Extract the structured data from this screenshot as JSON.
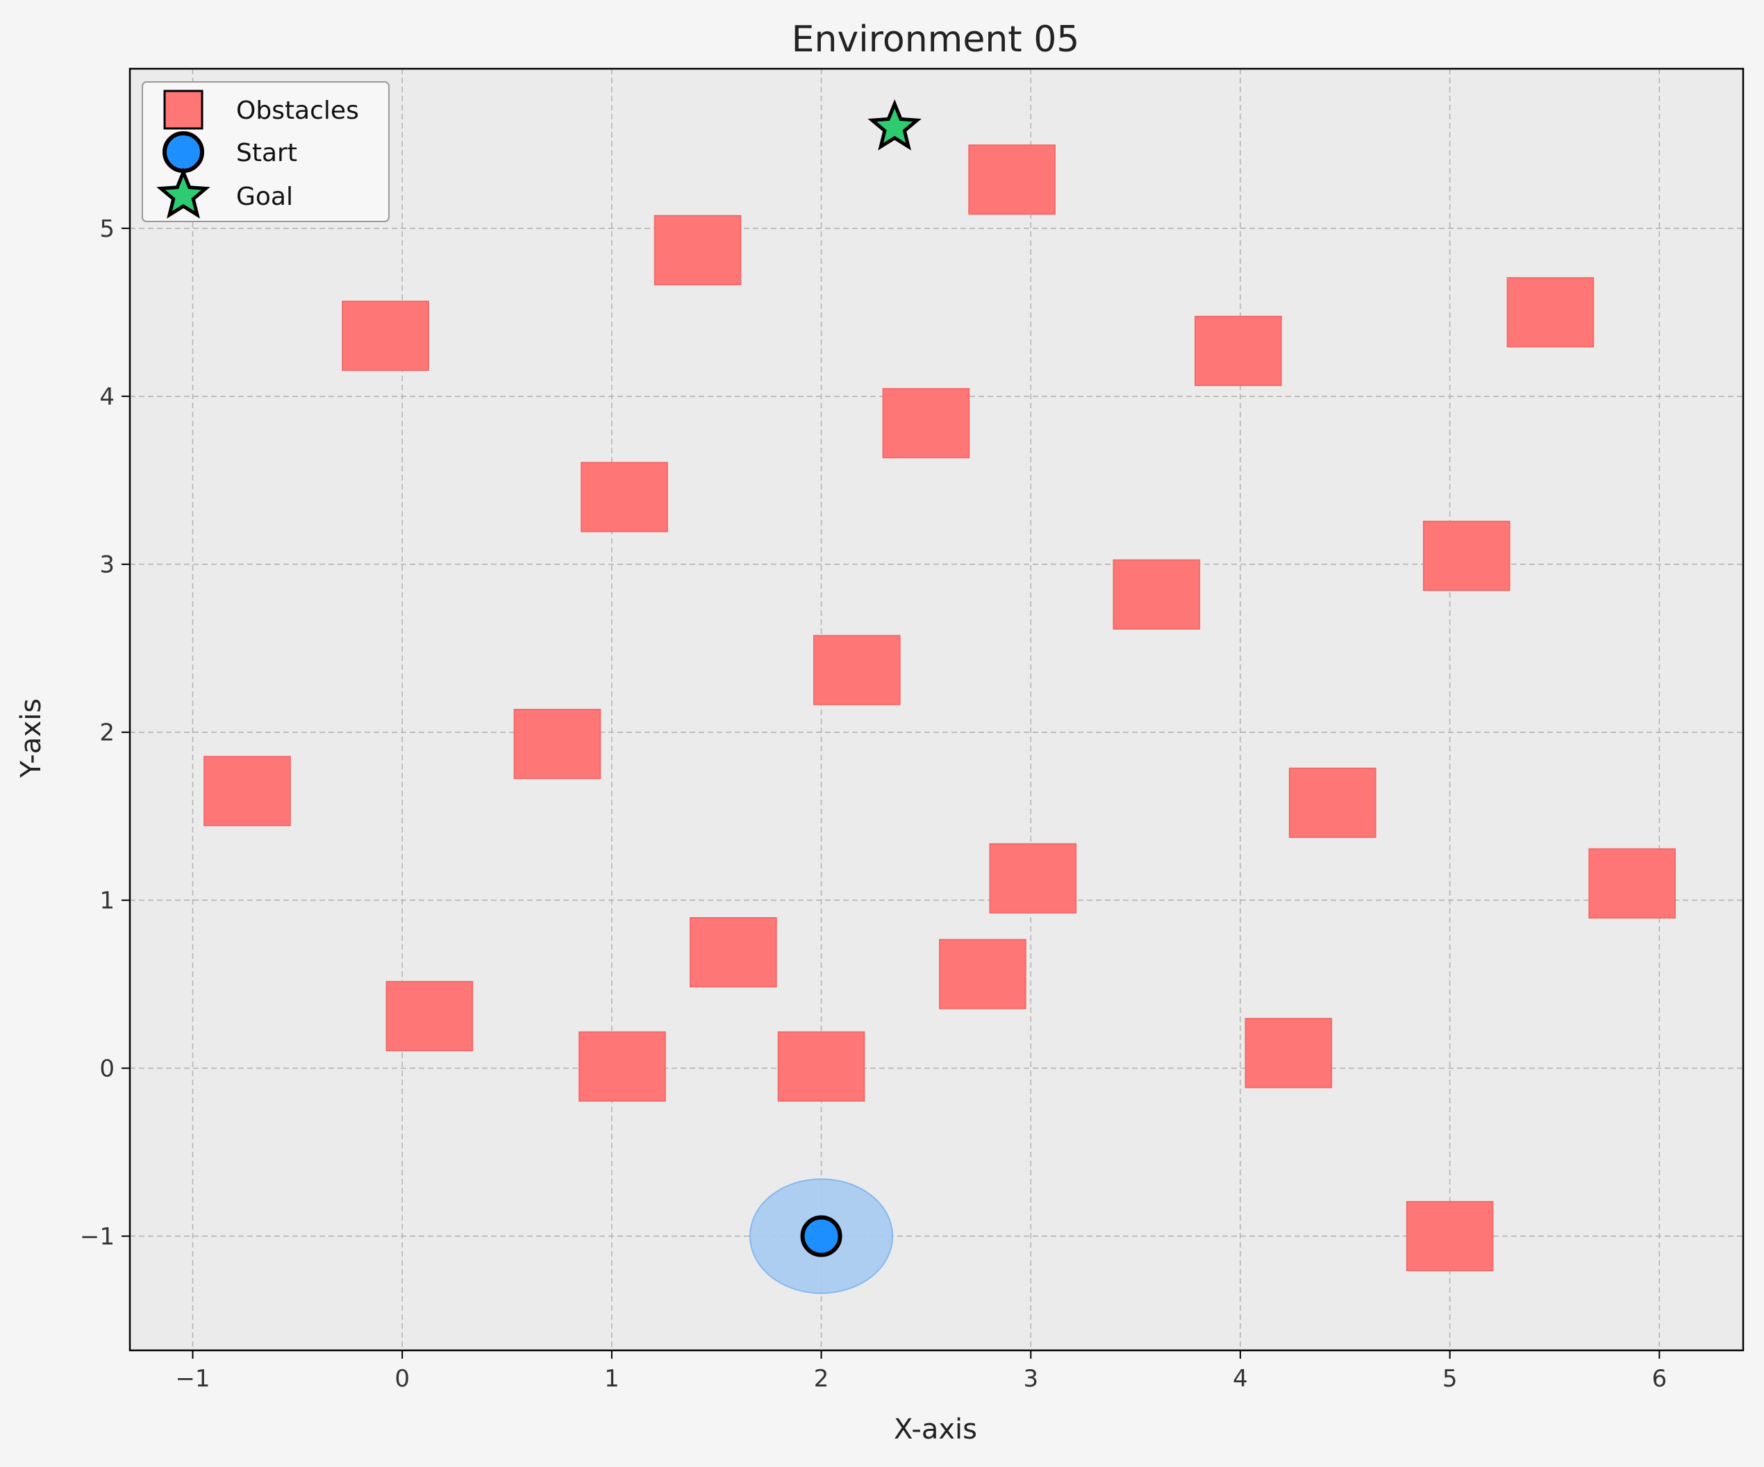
{
  "chart_data": {
    "type": "scatter",
    "title": "Environment 05",
    "xlabel": "X-axis",
    "ylabel": "Y-axis",
    "xlim": [
      -1.3,
      6.4
    ],
    "ylim": [
      -1.68,
      5.95
    ],
    "xticks": [
      -1,
      0,
      1,
      2,
      3,
      4,
      5,
      6
    ],
    "yticks": [
      -1,
      0,
      1,
      2,
      3,
      4,
      5
    ],
    "xtick_labels": [
      "−1",
      "0",
      "1",
      "2",
      "3",
      "4",
      "5",
      "6"
    ],
    "ytick_labels": [
      "−1",
      "0",
      "1",
      "2",
      "3",
      "4",
      "5"
    ],
    "grid": true,
    "legend_placement": "top-left",
    "legend": [
      {
        "name": "Obstacles",
        "marker": "square"
      },
      {
        "name": "Start",
        "marker": "circle"
      },
      {
        "name": "Goal",
        "marker": "star"
      }
    ],
    "obstacle_size": [
      0.41,
      0.41
    ],
    "obstacles": [
      {
        "x": -0.74,
        "y": 1.65
      },
      {
        "x": -0.08,
        "y": 4.36
      },
      {
        "x": 0.13,
        "y": 0.31
      },
      {
        "x": 0.74,
        "y": 1.93
      },
      {
        "x": 1.06,
        "y": 3.4
      },
      {
        "x": 1.05,
        "y": 0.01
      },
      {
        "x": 1.41,
        "y": 4.87
      },
      {
        "x": 1.58,
        "y": 0.69
      },
      {
        "x": 2.0,
        "y": 0.01
      },
      {
        "x": 2.17,
        "y": 2.37
      },
      {
        "x": 2.5,
        "y": 3.84
      },
      {
        "x": 2.77,
        "y": 0.56
      },
      {
        "x": 3.01,
        "y": 1.13
      },
      {
        "x": 2.91,
        "y": 5.29
      },
      {
        "x": 3.6,
        "y": 2.82
      },
      {
        "x": 3.99,
        "y": 4.27
      },
      {
        "x": 4.23,
        "y": 0.09
      },
      {
        "x": 4.44,
        "y": 1.58
      },
      {
        "x": 5.0,
        "y": -1.0
      },
      {
        "x": 5.08,
        "y": 3.05
      },
      {
        "x": 5.48,
        "y": 4.5
      },
      {
        "x": 5.87,
        "y": 1.1
      }
    ],
    "start": {
      "x": 2.0,
      "y": -1.0,
      "radius": 0.34
    },
    "goal": {
      "x": 2.35,
      "y": 5.6
    }
  },
  "colors": {
    "obstacle": "#ff7676",
    "start": "#1e8fff",
    "start_region": "#a6cbf2",
    "goal": "#2ecc71",
    "plot_bg": "#ebebeb",
    "figure_bg": "#f5f5f5",
    "grid": "#b5b5b5"
  }
}
